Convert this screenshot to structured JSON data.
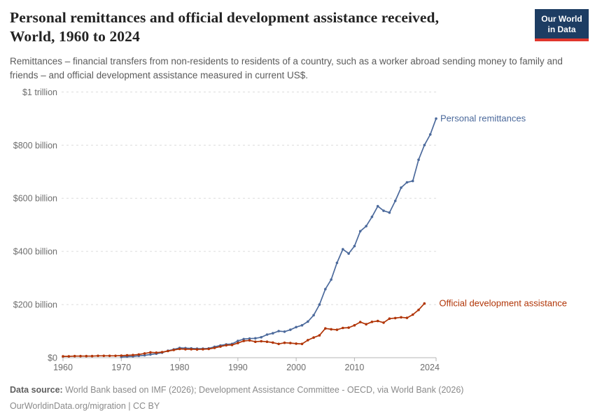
{
  "header": {
    "title_line1": "Personal remittances and official development assistance received,",
    "title_line2": "World, 1960 to 2024",
    "subtitle": "Remittances – financial transfers from non-residents to residents of a country, such as a worker abroad sending money to family and friends – and official development assistance measured in current US$."
  },
  "logo": {
    "line1": "Our World",
    "line2": "in Data",
    "bg_color": "#1d3d63",
    "stripe_color": "#e0362c"
  },
  "chart_data": {
    "type": "line",
    "title": "Personal remittances and official development assistance received, World, 1960 to 2024",
    "xlabel": "",
    "ylabel": "current US$",
    "xlim": [
      1960,
      2024
    ],
    "ylim": [
      0,
      1000000000000
    ],
    "grid": "dashed-horizontal",
    "legend_position": "end-of-line-labels",
    "unit": "US$ billions",
    "y_ticks": [
      {
        "value": 0,
        "label": "$0"
      },
      {
        "value": 200,
        "label": "$200 billion"
      },
      {
        "value": 400,
        "label": "$400 billion"
      },
      {
        "value": 600,
        "label": "$600 billion"
      },
      {
        "value": 800,
        "label": "$800 billion"
      },
      {
        "value": 1000,
        "label": "$1 trillion"
      }
    ],
    "x_ticks": [
      1960,
      1970,
      1980,
      1990,
      2000,
      2010,
      2024
    ],
    "series": [
      {
        "name": "Personal remittances",
        "color": "#4C6A9C",
        "start_year": 1970,
        "end_year": 2024,
        "values_billions": [
          3,
          4,
          5,
          7,
          9,
          12,
          15,
          19,
          26,
          31,
          37,
          36,
          35,
          34,
          34,
          35,
          41,
          46,
          50,
          52,
          63,
          70,
          72,
          73,
          77,
          87,
          92,
          100,
          98,
          105,
          115,
          122,
          136,
          160,
          200,
          258,
          294,
          357,
          408,
          392,
          420,
          476,
          495,
          530,
          570,
          553,
          546,
          590,
          640,
          660,
          665,
          745,
          800,
          840,
          900
        ],
        "label_offset": [
          6,
          4
        ]
      },
      {
        "name": "Official development assistance",
        "color": "#B13507",
        "start_year": 1960,
        "end_year": 2022,
        "values_billions": [
          5,
          5,
          6,
          6,
          6,
          6,
          7,
          7,
          7,
          7,
          8,
          9,
          10,
          12,
          16,
          20,
          19,
          21,
          25,
          29,
          33,
          32,
          32,
          31,
          32,
          33,
          37,
          42,
          47,
          48,
          55,
          63,
          65,
          60,
          62,
          60,
          57,
          52,
          56,
          55,
          53,
          52,
          66,
          76,
          84,
          110,
          107,
          105,
          112,
          113,
          122,
          134,
          126,
          135,
          138,
          132,
          147,
          149,
          152,
          150,
          162,
          180,
          204
        ],
        "label_offset": [
          21,
          4
        ]
      }
    ]
  },
  "footer": {
    "source_label": "Data source:",
    "source_text": " World Bank based on IMF (2026); Development Assistance Committee - OECD, via World Bank (2026)",
    "url": "OurWorldinData.org/migration",
    "separator": " | ",
    "license": "CC BY"
  }
}
